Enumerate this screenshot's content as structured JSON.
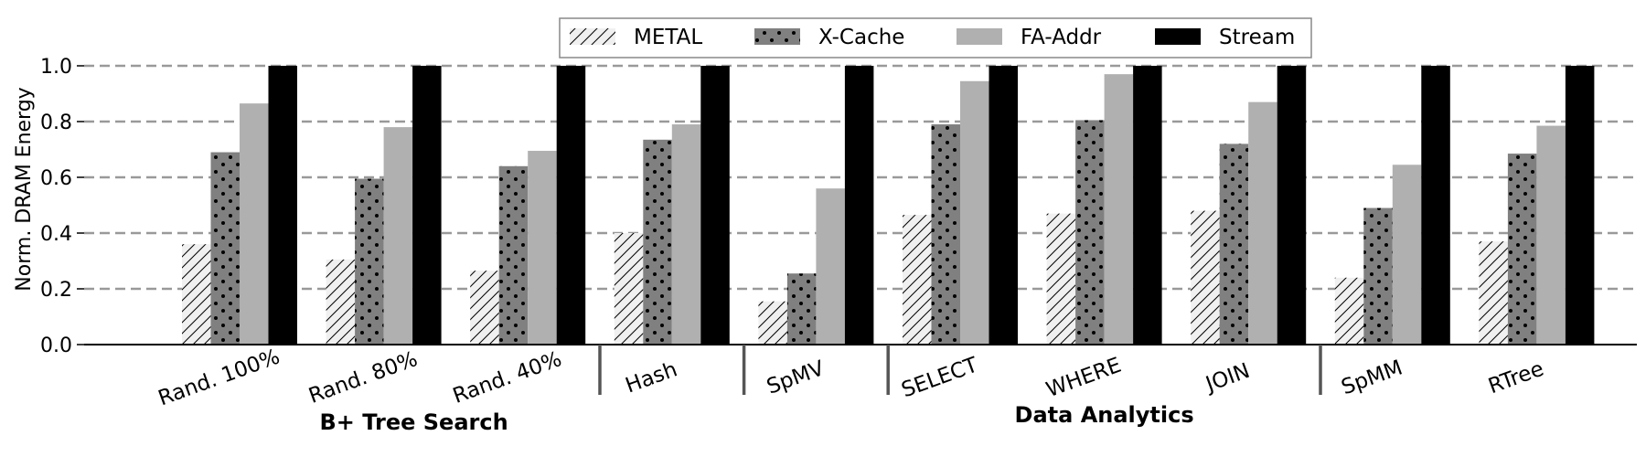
{
  "chart_data": {
    "type": "bar",
    "title": "",
    "xlabel": "",
    "ylabel": "Norm. DRAM Energy",
    "ylim": [
      0,
      1.0
    ],
    "yticks": [
      "0.0",
      "0.2",
      "0.4",
      "0.6",
      "0.8",
      "1.0"
    ],
    "grid": "horizontal dashed",
    "legend_position": "top-center",
    "categories": [
      "Rand. 100%",
      "Rand. 80%",
      "Rand. 40%",
      "Hash",
      "SpMV",
      "SELECT",
      "WHERE",
      "JOIN",
      "SpMM",
      "RTree"
    ],
    "groups": [
      {
        "label": "B+ Tree Search",
        "categories": [
          "Rand. 100%",
          "Rand. 80%",
          "Rand. 40%"
        ]
      },
      {
        "label": "Data Analytics",
        "categories": [
          "SELECT",
          "WHERE",
          "JOIN"
        ]
      }
    ],
    "series": [
      {
        "name": "METAL",
        "pattern": "hatch",
        "color": "#f0f0f0",
        "values": [
          0.36,
          0.305,
          0.265,
          0.4,
          0.155,
          0.465,
          0.47,
          0.48,
          0.24,
          0.37
        ]
      },
      {
        "name": "X-Cache",
        "pattern": "dots",
        "color": "#808080",
        "values": [
          0.69,
          0.595,
          0.64,
          0.735,
          0.255,
          0.79,
          0.805,
          0.72,
          0.49,
          0.685
        ]
      },
      {
        "name": "FA-Addr",
        "pattern": "solid",
        "color": "#b0b0b0",
        "values": [
          0.865,
          0.78,
          0.695,
          0.79,
          0.56,
          0.945,
          0.97,
          0.87,
          0.645,
          0.785
        ]
      },
      {
        "name": "Stream",
        "pattern": "solid",
        "color": "#000000",
        "values": [
          1.0,
          1.0,
          1.0,
          1.0,
          1.0,
          1.0,
          1.0,
          1.0,
          1.0,
          1.0
        ]
      }
    ]
  }
}
